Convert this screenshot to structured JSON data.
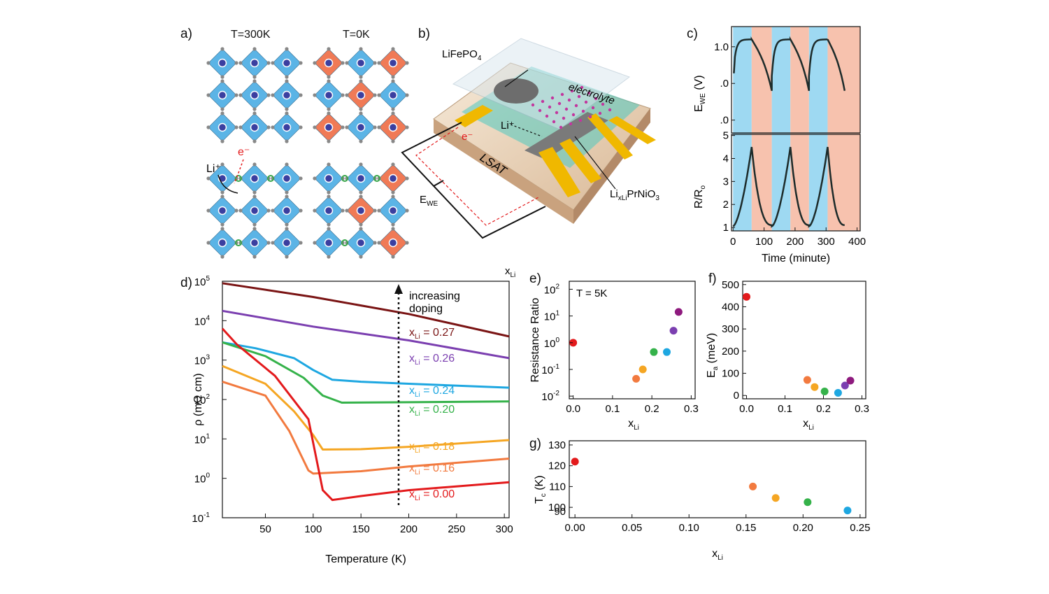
{
  "panel_labels": {
    "a": "a)",
    "b": "b)",
    "c": "c)",
    "d": "d)",
    "e": "e)",
    "f": "f)",
    "g": "g)"
  },
  "panel_a": {
    "title_left": "T=300K",
    "title_right": "T=0K",
    "ion_label": "Li⁺",
    "electron_label": "e⁻",
    "colors": {
      "octahedron_blue": "#5bb4e6",
      "octahedron_red": "#f07a56",
      "dopant_green": "#3aa64a"
    }
  },
  "panel_b": {
    "cathode": "LiFePO",
    "cathode_sub": "4",
    "electrolyte": "electrolyte",
    "ion": "Li⁺",
    "electron": "e⁻",
    "substrate": "LSAT",
    "potential": "E",
    "potential_sub": "WE",
    "film_pre": "Li",
    "film_sub": "xLi",
    "film_post": "PrNiO",
    "film_sub2": "3"
  },
  "chart_data": [
    {
      "id": "c",
      "type": "line",
      "title": "",
      "xlabel": "Time (minute)",
      "x_ticks": [
        0,
        100,
        200,
        300,
        400
      ],
      "xlim": [
        -5,
        410
      ],
      "shading": [
        {
          "from": 0,
          "to": 60,
          "color": "#9ed9f2"
        },
        {
          "from": 60,
          "to": 125,
          "color": "#f7c2ae"
        },
        {
          "from": 125,
          "to": 185,
          "color": "#9ed9f2"
        },
        {
          "from": 185,
          "to": 245,
          "color": "#f7c2ae"
        },
        {
          "from": 245,
          "to": 305,
          "color": "#9ed9f2"
        },
        {
          "from": 305,
          "to": 410,
          "color": "#f7c2ae"
        }
      ],
      "top": {
        "ylabel": "E",
        "ylabel_sub": "WE",
        "ylabel_unit": "(V)",
        "ylim": [
          -1.35,
          1.55
        ],
        "tick_labels": [
          {
            "v": 1.0,
            "t": "1.0"
          },
          {
            "v": 0.0,
            "t": ".0"
          },
          {
            "v": -1.0,
            "t": ".0"
          }
        ]
      },
      "bottom": {
        "ylabel": "R/R",
        "ylabel_sub": "o",
        "ylim": [
          0.85,
          5.05
        ],
        "y_ticks": [
          1,
          2,
          3,
          4,
          5
        ]
      }
    },
    {
      "id": "d",
      "type": "line",
      "xlabel": "Temperature (K)",
      "ylabel": "ρ (mΩ cm)",
      "xlim": [
        5,
        305
      ],
      "x_ticks": [
        50,
        100,
        150,
        200,
        250,
        300
      ],
      "ylog": true,
      "ylim_exp": [
        -1,
        5
      ],
      "y_tick_labels": [
        "10",
        "10",
        "10",
        "10",
        "10",
        "10",
        "10"
      ],
      "y_tick_exps": [
        "-1",
        "0",
        "1",
        "2",
        "3",
        "4",
        "5"
      ],
      "legend_header": "x",
      "legend_header_sub": "Li",
      "annotation": [
        "increasing",
        "doping"
      ],
      "series": [
        {
          "name": "0.27",
          "label": "x",
          "sub": "Li",
          "value_text": " = 0.27",
          "color": "#7a1414",
          "points": [
            [
              5,
              4.95
            ],
            [
              100,
              4.6
            ],
            [
              200,
              4.17
            ],
            [
              305,
              3.6
            ]
          ]
        },
        {
          "name": "0.26",
          "label": "x",
          "sub": "Li",
          "value_text": " = 0.26",
          "color": "#7b3fb0",
          "points": [
            [
              5,
              4.25
            ],
            [
              100,
              3.85
            ],
            [
              200,
              3.5
            ],
            [
              305,
              3.05
            ]
          ]
        },
        {
          "name": "0.24",
          "label": "x",
          "sub": "Li",
          "value_text": " = 0.24",
          "color": "#1ea7e1",
          "points": [
            [
              5,
              3.45
            ],
            [
              40,
              3.3
            ],
            [
              80,
              3.05
            ],
            [
              100,
              2.75
            ],
            [
              120,
              2.5
            ],
            [
              150,
              2.45
            ],
            [
              200,
              2.4
            ],
            [
              305,
              2.3
            ]
          ]
        },
        {
          "name": "0.20",
          "label": "x",
          "sub": "Li",
          "value_text": " = 0.20",
          "color": "#35b24a",
          "points": [
            [
              5,
              3.45
            ],
            [
              50,
              3.1
            ],
            [
              90,
              2.55
            ],
            [
              110,
              2.1
            ],
            [
              130,
              1.92
            ],
            [
              200,
              1.93
            ],
            [
              305,
              1.95
            ]
          ]
        },
        {
          "name": "0.18",
          "label": "x",
          "sub": "Li",
          "value_text": " = 0.18",
          "color": "#f5a623",
          "points": [
            [
              5,
              2.85
            ],
            [
              50,
              2.4
            ],
            [
              80,
              1.7
            ],
            [
              100,
              1.1
            ],
            [
              110,
              0.73
            ],
            [
              150,
              0.74
            ],
            [
              200,
              0.8
            ],
            [
              305,
              0.97
            ]
          ]
        },
        {
          "name": "0.16",
          "label": "x",
          "sub": "Li",
          "value_text": " = 0.16",
          "color": "#f27a3f",
          "points": [
            [
              5,
              2.45
            ],
            [
              50,
              2.1
            ],
            [
              75,
              1.2
            ],
            [
              95,
              0.2
            ],
            [
              100,
              0.12
            ],
            [
              150,
              0.18
            ],
            [
              200,
              0.3
            ],
            [
              305,
              0.5
            ]
          ]
        },
        {
          "name": "0.00",
          "label": "x",
          "sub": "Li",
          "value_text": " = 0.00",
          "color": "#e31a1c",
          "points": [
            [
              5,
              3.8
            ],
            [
              20,
              3.4
            ],
            [
              60,
              2.6
            ],
            [
              95,
              1.5
            ],
            [
              110,
              -0.3
            ],
            [
              120,
              -0.55
            ],
            [
              150,
              -0.45
            ],
            [
              200,
              -0.3
            ],
            [
              305,
              -0.1
            ]
          ]
        }
      ]
    },
    {
      "id": "e",
      "type": "scatter",
      "annotation": "T = 5K",
      "xlabel": "x",
      "xlabel_sub": "Li",
      "ylabel": "Resistance Ratio",
      "xlim": [
        -0.01,
        0.31
      ],
      "x_ticks": [
        "0.0",
        "0.1",
        "0.2",
        "0.3"
      ],
      "ylog": true,
      "ylim_exp": [
        -2.1,
        2.3
      ],
      "y_tick_exps": [
        "-2",
        "-1",
        "0",
        "1",
        "2"
      ],
      "y_tick_labels": [
        "10",
        "10",
        "10",
        "10",
        "10"
      ],
      "points": [
        {
          "x": 0.0,
          "y_exp": 0.0,
          "color": "#e31a1c"
        },
        {
          "x": 0.16,
          "y_exp": -1.35,
          "color": "#f27a3f"
        },
        {
          "x": 0.177,
          "y_exp": -1.0,
          "color": "#f5a623"
        },
        {
          "x": 0.205,
          "y_exp": -0.35,
          "color": "#35b24a"
        },
        {
          "x": 0.238,
          "y_exp": -0.35,
          "color": "#1ea7e1"
        },
        {
          "x": 0.255,
          "y_exp": 0.45,
          "color": "#7b3fb0"
        },
        {
          "x": 0.268,
          "y_exp": 1.15,
          "color": "#8e1a7e"
        }
      ]
    },
    {
      "id": "f",
      "type": "scatter",
      "xlabel": "x",
      "xlabel_sub": "Li",
      "ylabel": "E",
      "ylabel_sub": "a",
      "ylabel_unit": "(meV)",
      "xlim": [
        -0.01,
        0.31
      ],
      "x_ticks": [
        "0.0",
        "0.1",
        "0.2",
        "0.3"
      ],
      "ylim": [
        -15,
        515
      ],
      "y_ticks": [
        0,
        100,
        200,
        300,
        400,
        500
      ],
      "points": [
        {
          "x": 0.0,
          "y": 445,
          "color": "#e31a1c"
        },
        {
          "x": 0.158,
          "y": 70,
          "color": "#f27a3f"
        },
        {
          "x": 0.177,
          "y": 38,
          "color": "#f5a623"
        },
        {
          "x": 0.203,
          "y": 18,
          "color": "#35b24a"
        },
        {
          "x": 0.238,
          "y": 12,
          "color": "#1ea7e1"
        },
        {
          "x": 0.256,
          "y": 45,
          "color": "#7b3fb0"
        },
        {
          "x": 0.27,
          "y": 67,
          "color": "#8e1a7e"
        }
      ]
    },
    {
      "id": "g",
      "type": "scatter",
      "xlabel": "x",
      "xlabel_sub": "Li",
      "ylabel": "T",
      "ylabel_sub": "c",
      "ylabel_unit": "(K)",
      "xlim": [
        -0.005,
        0.255
      ],
      "x_ticks": [
        "0.00",
        "0.05",
        "0.10",
        "0.15",
        "0.20",
        "0.25"
      ],
      "ylim": [
        95,
        132
      ],
      "y_ticks": [
        100,
        110,
        120,
        130
      ],
      "points": [
        {
          "x": 0.0,
          "y": 122,
          "color": "#e31a1c"
        },
        {
          "x": 0.156,
          "y": 110,
          "color": "#f27a3f"
        },
        {
          "x": 0.176,
          "y": 104.5,
          "color": "#f5a623"
        },
        {
          "x": 0.204,
          "y": 102.5,
          "color": "#35b24a"
        },
        {
          "x": 0.239,
          "y": 98.5,
          "color": "#1ea7e1"
        }
      ]
    }
  ]
}
